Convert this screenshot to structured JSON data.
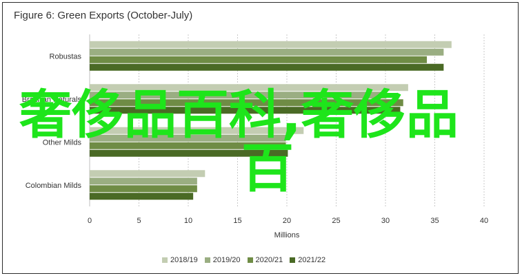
{
  "chart_data": {
    "type": "bar",
    "orientation": "horizontal",
    "title": "Figure 6: Green Exports (October-July)",
    "xlabel": "Millions",
    "ylabel": "",
    "xlim": [
      0,
      40
    ],
    "xticks": [
      0,
      5,
      10,
      15,
      20,
      25,
      30,
      35,
      40
    ],
    "grid": "vertical dashed",
    "legend_position": "bottom",
    "categories": [
      "Robustas",
      "Brazilian Naturals",
      "Other Milds",
      "Colombian Milds"
    ],
    "series": [
      {
        "name": "2018/19",
        "color": "#c3cdb2",
        "values": [
          36.7,
          32.3,
          21.7,
          11.7
        ]
      },
      {
        "name": "2019/20",
        "color": "#9aae82",
        "values": [
          35.9,
          30.1,
          19.9,
          10.9
        ]
      },
      {
        "name": "2020/21",
        "color": "#6f8c45",
        "values": [
          34.2,
          31.8,
          19.9,
          10.9
        ]
      },
      {
        "name": "2021/22",
        "color": "#4a6a25",
        "values": [
          35.9,
          31.5,
          20.1,
          10.5
        ]
      }
    ]
  },
  "watermark": {
    "line1": "奢侈品百科,奢侈品",
    "line2": "百"
  }
}
